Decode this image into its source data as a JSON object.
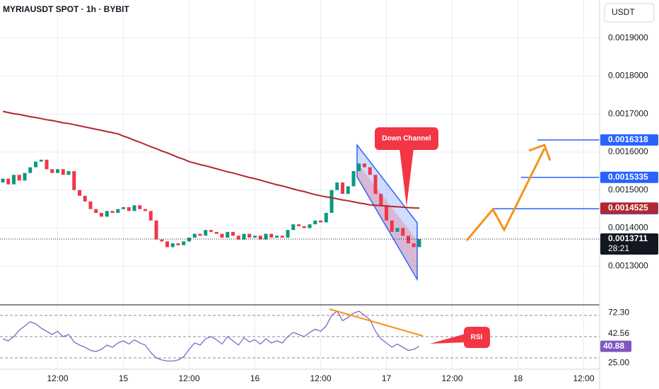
{
  "chart_data": {
    "type": "candlestick",
    "title": "MYRIAUSDT SPOT · 1h · BYBIT",
    "currency": "USDT",
    "up_color": "#089981",
    "down_color": "#f23645",
    "open": [
      0.00152,
      0.00153,
      0.001515,
      0.00154,
      0.001525,
      0.001545,
      0.00156,
      0.001575,
      0.00158,
      0.001555,
      0.001545,
      0.001555,
      0.00154,
      0.00155,
      0.0015,
      0.001485,
      0.00147,
      0.00145,
      0.00144,
      0.00143,
      0.001445,
      0.00144,
      0.00145,
      0.001455,
      0.001445,
      0.00146,
      0.00145,
      0.001445,
      0.00142,
      0.00137,
      0.001365,
      0.00135,
      0.00136,
      0.001355,
      0.001365,
      0.001375,
      0.001385,
      0.00138,
      0.001395,
      0.00139,
      0.001385,
      0.001375,
      0.00139,
      0.00138,
      0.00137,
      0.001385,
      0.001375,
      0.00138,
      0.00137,
      0.001385,
      0.001375,
      0.00138,
      0.001375,
      0.001395,
      0.00141,
      0.001405,
      0.0014,
      0.00141,
      0.00142,
      0.001415,
      0.00144,
      0.0015,
      0.00152,
      0.00149,
      0.00151,
      0.00155,
      0.00157,
      0.00156,
      0.00154,
      0.00149,
      0.00146,
      0.00142,
      0.00139,
      0.0014,
      0.00138,
      0.00136,
      0.00135
    ],
    "close": [
      0.00153,
      0.001515,
      0.00154,
      0.001525,
      0.001545,
      0.00156,
      0.001575,
      0.00158,
      0.001555,
      0.001545,
      0.001555,
      0.00154,
      0.00155,
      0.0015,
      0.001485,
      0.00147,
      0.00145,
      0.00144,
      0.00143,
      0.001445,
      0.00144,
      0.00145,
      0.001455,
      0.001445,
      0.00146,
      0.00145,
      0.001445,
      0.00142,
      0.00137,
      0.001365,
      0.00135,
      0.00136,
      0.001355,
      0.001365,
      0.001375,
      0.001385,
      0.00138,
      0.001395,
      0.00139,
      0.001385,
      0.001375,
      0.00139,
      0.00138,
      0.00137,
      0.001385,
      0.001375,
      0.00138,
      0.00137,
      0.001385,
      0.001375,
      0.00138,
      0.001375,
      0.001395,
      0.00141,
      0.001405,
      0.0014,
      0.00141,
      0.00142,
      0.001415,
      0.00144,
      0.0015,
      0.00152,
      0.00149,
      0.00151,
      0.00155,
      0.00157,
      0.00156,
      0.00154,
      0.00149,
      0.00146,
      0.00142,
      0.00139,
      0.0014,
      0.00138,
      0.00136,
      0.00135,
      0.0013711
    ],
    "ma": {
      "color": "#b2282e",
      "values": [
        0.001707,
        0.001704,
        0.001701,
        0.001699,
        0.001696,
        0.001693,
        0.001691,
        0.001688,
        0.001685,
        0.001683,
        0.00168,
        0.001677,
        0.001675,
        0.001672,
        0.001669,
        0.001666,
        0.001663,
        0.00166,
        0.001657,
        0.001654,
        0.001651,
        0.001648,
        0.001642,
        0.001637,
        0.001631,
        0.001626,
        0.00162,
        0.001614,
        0.001609,
        0.001603,
        0.001598,
        0.001592,
        0.001586,
        0.001581,
        0.001575,
        0.001571,
        0.001567,
        0.001564,
        0.00156,
        0.001556,
        0.001552,
        0.001548,
        0.001545,
        0.001541,
        0.001537,
        0.001533,
        0.00153,
        0.001526,
        0.001522,
        0.001518,
        0.001514,
        0.001511,
        0.001507,
        0.001503,
        0.001499,
        0.001496,
        0.001492,
        0.001488,
        0.001485,
        0.001482,
        0.00148,
        0.001477,
        0.001474,
        0.001472,
        0.001469,
        0.001466,
        0.001464,
        0.001461,
        0.00146,
        0.001459,
        0.001458,
        0.001457,
        0.001456,
        0.001455,
        0.001454,
        0.001453,
        0.0014525
      ]
    },
    "ylim": [
      0.0012,
      0.002
    ],
    "yticks": [
      {
        "value": 0.0019,
        "label": "0.0019000"
      },
      {
        "value": 0.0018,
        "label": "0.0018000"
      },
      {
        "value": 0.0017,
        "label": "0.0017000"
      },
      {
        "value": 0.0016,
        "label": "0.0016000"
      },
      {
        "value": 0.0015,
        "label": "0.0015000"
      },
      {
        "value": 0.0014,
        "label": "0.0014000"
      },
      {
        "value": 0.0013,
        "label": "0.0013000"
      }
    ],
    "x_labels": [
      "12:00",
      "15",
      "12:00",
      "16",
      "12:00",
      "17",
      "12:00",
      "18",
      "12:00"
    ],
    "levels": [
      {
        "value": 0.0016318,
        "color": "#2962ff"
      },
      {
        "value": 0.0015335,
        "color": "#2962ff"
      },
      {
        "value": 0.001451,
        "color": "#2962ff"
      }
    ],
    "countdown": "28:21",
    "annotations": [
      "Down Channel",
      "RSI"
    ],
    "grid": true,
    "rsi": {
      "color": "#7e57c2",
      "ylim": [
        19.3,
        79.3
      ],
      "bands": [
        70,
        50,
        30
      ],
      "yticks": [
        {
          "value": 72.3,
          "label": "72.30"
        },
        {
          "value": 42.56,
          "label": "42.56"
        },
        {
          "value": 25,
          "label": "25.00"
        }
      ],
      "values": [
        48,
        46,
        50,
        56,
        60,
        64,
        62,
        58,
        55,
        52,
        55,
        50,
        52,
        45,
        42,
        40,
        37,
        36,
        38,
        42,
        40,
        44,
        46,
        43,
        47,
        44,
        42,
        35,
        30,
        28,
        27,
        27,
        28,
        31,
        38,
        44,
        42,
        48,
        50,
        47,
        43,
        50,
        46,
        42,
        49,
        45,
        47,
        43,
        48,
        44,
        46,
        44,
        50,
        54,
        52,
        50,
        54,
        57,
        55,
        60,
        70,
        74,
        65,
        68,
        72,
        74,
        70,
        66,
        55,
        48,
        44,
        40,
        43,
        40,
        37,
        38,
        40.88
      ]
    }
  }
}
